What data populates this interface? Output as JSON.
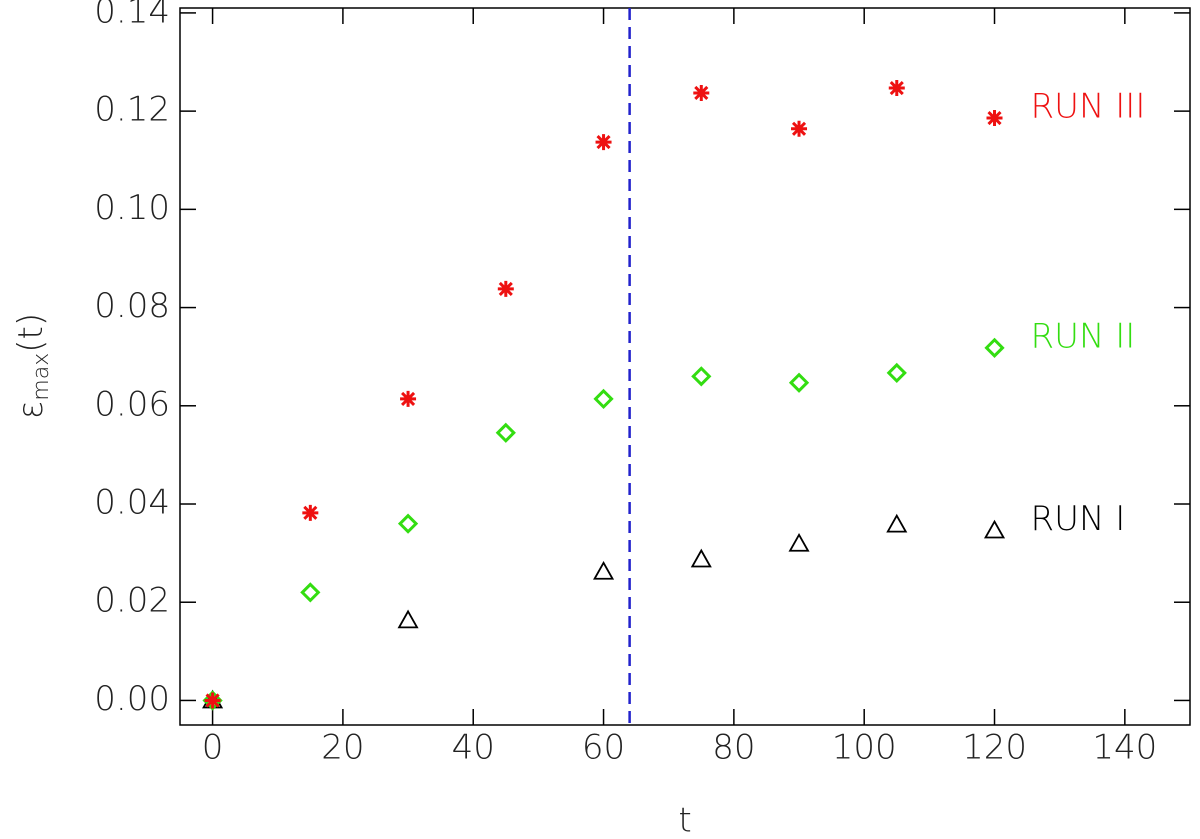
{
  "chart_data": {
    "type": "scatter",
    "xlabel": "t",
    "ylabel": [
      "ε",
      "max",
      "(t)"
    ],
    "xlim": [
      -5,
      150
    ],
    "ylim": [
      -0.005,
      0.141
    ],
    "xticks": [
      0,
      20,
      40,
      60,
      80,
      100,
      120,
      140
    ],
    "yticks": [
      {
        "value": 0,
        "label": "0.00"
      },
      {
        "value": 0.02,
        "label": "0.02"
      },
      {
        "value": 0.04,
        "label": "0.04"
      },
      {
        "value": 0.06,
        "label": "0.06"
      },
      {
        "value": 0.08,
        "label": "0.08"
      },
      {
        "value": 0.1,
        "label": "0.10"
      },
      {
        "value": 0.12,
        "label": "0.12"
      },
      {
        "value": 0.14,
        "label": "0.14"
      }
    ],
    "vline": {
      "x": 64,
      "color": "#2222cc"
    },
    "series": [
      {
        "name": "RUN I",
        "marker": "triangle",
        "color": "#000000",
        "x": [
          0,
          30,
          60,
          75,
          90,
          105,
          120
        ],
        "values": [
          0,
          0.0163,
          0.0262,
          0.0287,
          0.0319,
          0.0358,
          0.0346
        ]
      },
      {
        "name": "RUN II",
        "marker": "diamond",
        "color": "#33dd11",
        "x": [
          0,
          15,
          30,
          45,
          60,
          75,
          90,
          105,
          120
        ],
        "values": [
          0,
          0.022,
          0.036,
          0.0545,
          0.0614,
          0.066,
          0.0647,
          0.0667,
          0.0718
        ]
      },
      {
        "name": "RUN III",
        "marker": "asterisk",
        "color": "#ee1111",
        "x": [
          0,
          15,
          30,
          45,
          60,
          75,
          90,
          105,
          120
        ],
        "values": [
          0,
          0.0382,
          0.0614,
          0.0838,
          0.1137,
          0.1237,
          0.1164,
          0.1247,
          0.1186
        ]
      }
    ]
  }
}
